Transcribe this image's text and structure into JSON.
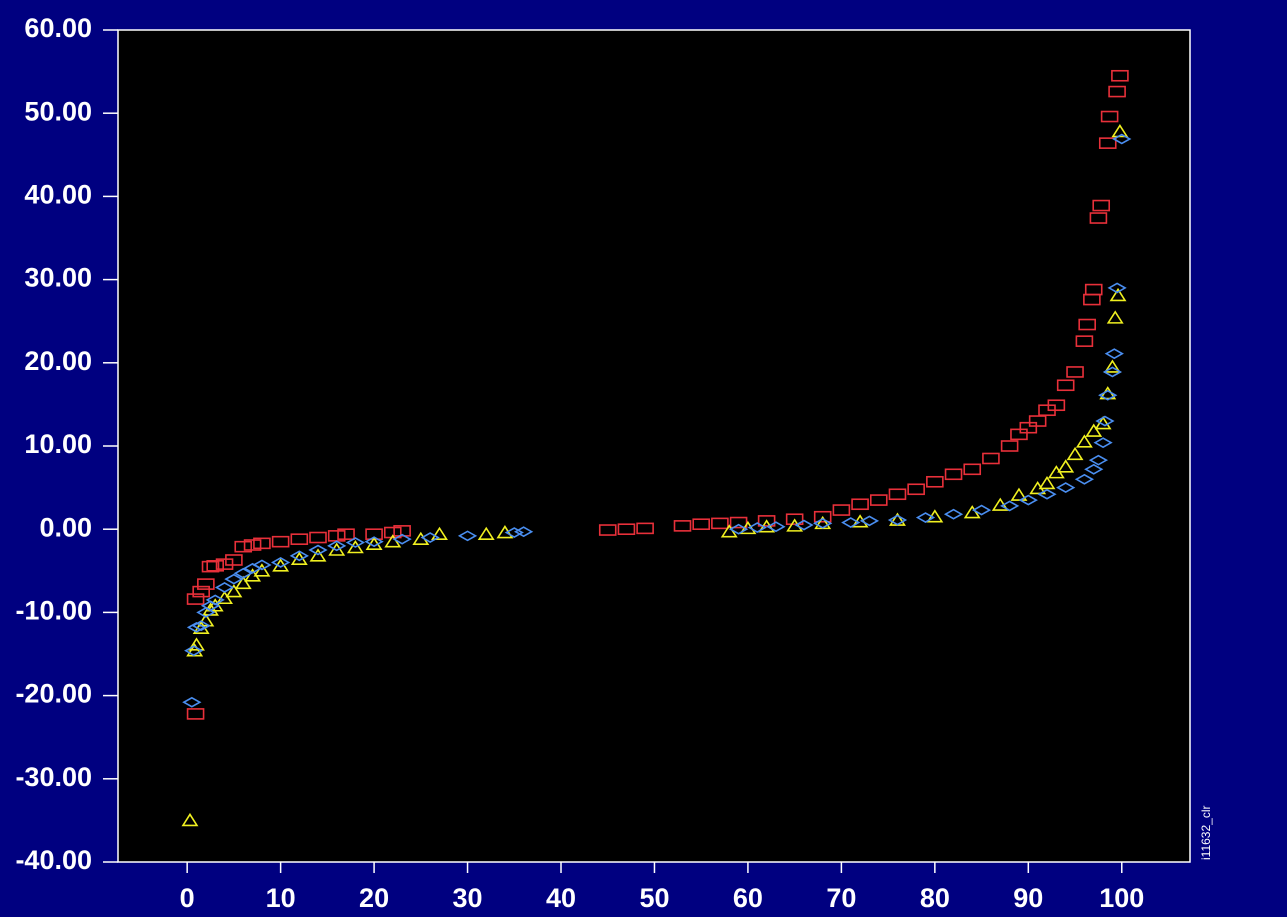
{
  "chart_data": {
    "type": "scatter",
    "annotation": "i11632_clr",
    "background": "#000080",
    "plot_background": "#000000",
    "xlim": [
      -7.4,
      107.3
    ],
    "xticks": [
      0,
      10,
      20,
      30,
      40,
      50,
      60,
      70,
      80,
      90,
      100
    ],
    "ylim": [
      -40,
      60
    ],
    "yticks": [
      {
        "value": -40,
        "label": "-40.00"
      },
      {
        "value": -30,
        "label": "-30.00"
      },
      {
        "value": -20,
        "label": "-20.00"
      },
      {
        "value": -10,
        "label": "-10.00"
      },
      {
        "value": 0,
        "label": "0.00"
      },
      {
        "value": 10,
        "label": "10.00"
      },
      {
        "value": 20,
        "label": "20.00"
      },
      {
        "value": 30,
        "label": "30.00"
      },
      {
        "value": 40,
        "label": "40.00"
      },
      {
        "value": 50,
        "label": "50.00"
      },
      {
        "value": 60,
        "label": "60.00"
      }
    ],
    "series": [
      {
        "color": "#e8303a",
        "marker": "square",
        "x": [
          0.9,
          0.9,
          1.5,
          2,
          2.5,
          3,
          4,
          5,
          6,
          7,
          8,
          10,
          12,
          14,
          16,
          17,
          20,
          22,
          23,
          45,
          47,
          49,
          53,
          55,
          57,
          59,
          62,
          65,
          68,
          70,
          72,
          74,
          76,
          78,
          80,
          82,
          84,
          86,
          88,
          89,
          90,
          91,
          92,
          93,
          94,
          95,
          96,
          96.3,
          96.8,
          97,
          97.5,
          97.8,
          98.5,
          98.7,
          99.5,
          99.8
        ],
        "values": [
          -22.2,
          -8.4,
          -7.5,
          -6.6,
          -4.5,
          -4.4,
          -4.2,
          -3.7,
          -2.1,
          -1.9,
          -1.7,
          -1.5,
          -1.2,
          -1.0,
          -0.8,
          -0.6,
          -0.6,
          -0.4,
          -0.2,
          -0.1,
          0,
          0.1,
          0.4,
          0.6,
          0.7,
          0.8,
          1.0,
          1.2,
          1.5,
          2.3,
          3.0,
          3.5,
          4.2,
          4.8,
          5.7,
          6.6,
          7.2,
          8.5,
          10,
          11.4,
          12.2,
          13.0,
          14.3,
          14.9,
          17.3,
          18.9,
          22.6,
          24.6,
          27.6,
          28.8,
          37.4,
          38.9,
          46.4,
          49.6,
          52.6,
          54.5
        ]
      },
      {
        "color": "#f0f020",
        "marker": "triangle",
        "x": [
          0.3,
          0.8,
          1,
          1.5,
          2,
          2.5,
          3,
          4,
          5,
          6,
          7,
          8,
          10,
          12,
          14,
          16,
          18,
          20,
          22,
          25,
          27,
          32,
          34,
          58,
          60,
          62,
          65,
          68,
          72,
          76,
          80,
          84,
          87,
          89,
          91,
          92,
          93,
          94,
          95,
          96,
          97,
          98,
          98.5,
          99,
          99.3,
          99.6,
          99.8
        ],
        "values": [
          -35,
          -14.6,
          -13.9,
          -11.9,
          -11,
          -9.7,
          -9.2,
          -8.3,
          -7.5,
          -6.5,
          -5.6,
          -5,
          -4.4,
          -3.6,
          -3.2,
          -2.5,
          -2.2,
          -1.8,
          -1.5,
          -1.2,
          -0.6,
          -0.6,
          -0.4,
          -0.3,
          0.1,
          0.3,
          0.4,
          0.7,
          0.9,
          1.1,
          1.5,
          2.0,
          2.9,
          4.1,
          4.9,
          5.5,
          6.8,
          7.5,
          9.0,
          10.5,
          11.8,
          12.7,
          16.3,
          19.5,
          25.4,
          28.1,
          47.8
        ]
      },
      {
        "color": "#4a8ef0",
        "marker": "diamond",
        "x": [
          0.5,
          0.7,
          1,
          1.5,
          2,
          2.5,
          3,
          4,
          5,
          6,
          7,
          8,
          10,
          12,
          14,
          16,
          18,
          20,
          23,
          26,
          30,
          35,
          36,
          59,
          61,
          63,
          66,
          68,
          71,
          73,
          76,
          79,
          82,
          85,
          88,
          90,
          92,
          94,
          96,
          97,
          97.5,
          98,
          98.2,
          98.5,
          99,
          99.2,
          99.5,
          100
        ],
        "values": [
          -20.8,
          -14.6,
          -11.8,
          -11.6,
          -10,
          -9.2,
          -8.5,
          -7,
          -6,
          -5.3,
          -4.7,
          -4.3,
          -4,
          -3.2,
          -2.5,
          -2.0,
          -1.6,
          -1.5,
          -1.2,
          -1.0,
          -0.8,
          -0.4,
          -0.3,
          0,
          0.2,
          0.3,
          0.5,
          0.7,
          0.8,
          1.0,
          1.1,
          1.4,
          1.8,
          2.3,
          2.8,
          3.5,
          4.2,
          5.0,
          6.0,
          7.2,
          8.3,
          10.4,
          13.0,
          16.1,
          18.9,
          21.1,
          29.0,
          46.9
        ]
      }
    ]
  }
}
